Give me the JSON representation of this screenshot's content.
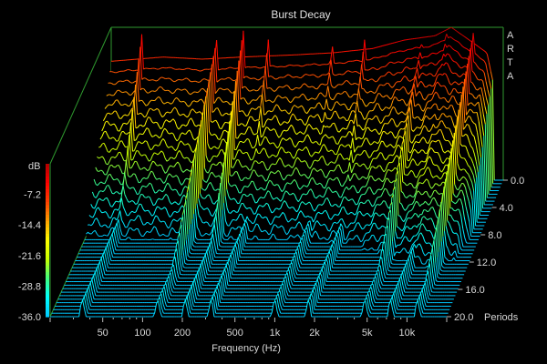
{
  "chart_data": {
    "type": "waterfall",
    "title": "Burst Decay",
    "watermark": [
      "A",
      "R",
      "T",
      "A"
    ],
    "xlabel": "Frequency (Hz)",
    "x_scale": "log",
    "x_ticks": [
      {
        "label": "50",
        "value": 50
      },
      {
        "label": "100",
        "value": 100
      },
      {
        "label": "200",
        "value": 200
      },
      {
        "label": "500",
        "value": 500
      },
      {
        "label": "1k",
        "value": 1000
      },
      {
        "label": "2k",
        "value": 2000
      },
      {
        "label": "5k",
        "value": 5000
      },
      {
        "label": "10k",
        "value": 10000
      }
    ],
    "xlim": [
      20,
      20000
    ],
    "z_axis": {
      "unit": "dB",
      "ticks": [
        "-7.2",
        "-14.4",
        "-21.6",
        "-28.8",
        "-36.0"
      ],
      "range": [
        -36,
        0
      ],
      "colormap": [
        "#00c8ff",
        "#00ffff",
        "#40ff80",
        "#c8ff00",
        "#ffff00",
        "#ffa000",
        "#ff4000",
        "#ff0000",
        "#b00000"
      ]
    },
    "depth_axis": {
      "unit": "Periods",
      "ticks": [
        "0.0",
        "4.0",
        "8.0",
        "12.0",
        "16.0",
        "20.0"
      ],
      "range": [
        0,
        20
      ],
      "rows": 40
    },
    "surface": {
      "front_profile_db": [
        {
          "f": 20,
          "db": -8
        },
        {
          "f": 50,
          "db": -7
        },
        {
          "f": 100,
          "db": -7.5
        },
        {
          "f": 200,
          "db": -7
        },
        {
          "f": 500,
          "db": -6.5
        },
        {
          "f": 1000,
          "db": -6
        },
        {
          "f": 2000,
          "db": -5
        },
        {
          "f": 3500,
          "db": -3
        },
        {
          "f": 6000,
          "db": -2
        },
        {
          "f": 8000,
          "db": 0
        },
        {
          "f": 11000,
          "db": -3
        },
        {
          "f": 15000,
          "db": -6
        },
        {
          "f": 17000,
          "db": -14
        }
      ],
      "ridges": [
        {
          "f": 35,
          "periods": 5
        },
        {
          "f": 130,
          "periods": 12
        },
        {
          "f": 210,
          "periods": 8
        },
        {
          "f": 330,
          "periods": 4
        },
        {
          "f": 1000,
          "periods": 4
        },
        {
          "f": 1800,
          "periods": 5
        },
        {
          "f": 4800,
          "periods": 12
        },
        {
          "f": 7500,
          "periods": 8
        },
        {
          "f": 12000,
          "periods": 14
        }
      ]
    }
  }
}
